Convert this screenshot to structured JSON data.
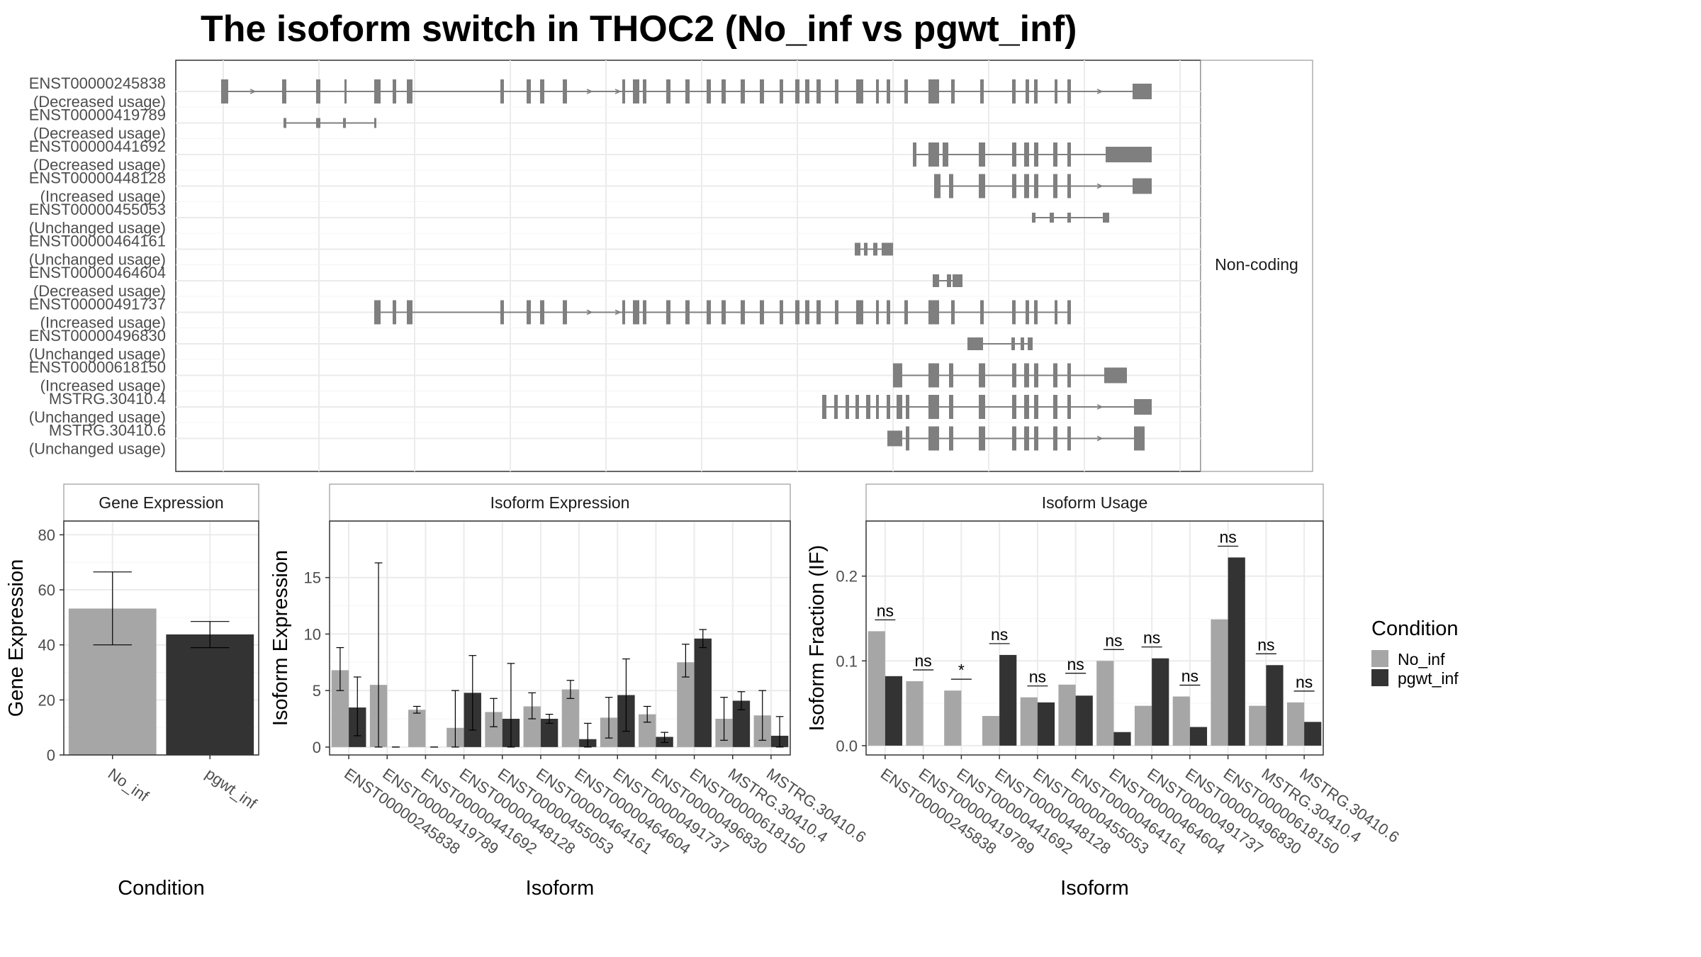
{
  "figure": {
    "title": "The isoform switch in THOC2 (No_inf vs pgwt_inf)",
    "structure_strip_label": "Non-coding",
    "legend": {
      "title": "Condition",
      "items": [
        {
          "label": "No_inf",
          "color": "#a6a6a6"
        },
        {
          "label": "pgwt_inf",
          "color": "#333333"
        }
      ]
    }
  },
  "chart_data": [
    {
      "type": "gene-structure",
      "facet_label": "Non-coding",
      "transcripts": [
        {
          "id": "ENST00000245838",
          "change": "(Decreased usage)"
        },
        {
          "id": "ENST00000419789",
          "change": "(Decreased usage)"
        },
        {
          "id": "ENST00000441692",
          "change": "(Decreased usage)"
        },
        {
          "id": "ENST00000448128",
          "change": "(Increased usage)"
        },
        {
          "id": "ENST00000455053",
          "change": "(Unchanged usage)"
        },
        {
          "id": "ENST00000464161",
          "change": "(Unchanged usage)"
        },
        {
          "id": "ENST00000464604",
          "change": "(Decreased usage)"
        },
        {
          "id": "ENST00000491737",
          "change": "(Increased usage)"
        },
        {
          "id": "ENST00000496830",
          "change": "(Unchanged usage)"
        },
        {
          "id": "ENST00000618150",
          "change": "(Increased usage)"
        },
        {
          "id": "MSTRG.30410.4",
          "change": "(Unchanged usage)"
        },
        {
          "id": "MSTRG.30410.6",
          "change": "(Unchanged usage)"
        }
      ]
    },
    {
      "type": "bar",
      "title": "Gene Expression",
      "xlabel": "Condition",
      "ylabel": "Gene Expression",
      "ylim": [
        0,
        85
      ],
      "yticks": [
        0,
        20,
        40,
        60,
        80
      ],
      "categories": [
        "No_inf",
        "pgwt_inf"
      ],
      "values": [
        53.2,
        43.8
      ],
      "error": [
        [
          40.0,
          66.5
        ],
        [
          39.0,
          48.5
        ]
      ],
      "colors": [
        "#a6a6a6",
        "#333333"
      ]
    },
    {
      "type": "bar",
      "title": "Isoform Expression",
      "xlabel": "Isoform",
      "ylabel": "Isoform Expression",
      "ylim": [
        -0.7,
        20.0
      ],
      "yticks": [
        0,
        5,
        10,
        15
      ],
      "categories": [
        "ENST00000245838",
        "ENST00000419789",
        "ENST00000441692",
        "ENST00000448128",
        "ENST00000455053",
        "ENST00000464161",
        "ENST00000464604",
        "ENST00000491737",
        "ENST00000496830",
        "ENST00000618150",
        "MSTRG.30410.4",
        "MSTRG.30410.6"
      ],
      "series": [
        {
          "name": "No_inf",
          "values": [
            6.8,
            5.5,
            3.3,
            1.7,
            3.1,
            3.6,
            5.1,
            2.6,
            2.9,
            7.5,
            2.5,
            2.8
          ],
          "error": [
            [
              5.0,
              8.8
            ],
            [
              0.0,
              16.3
            ],
            [
              3.0,
              3.6
            ],
            [
              0.0,
              5.0
            ],
            [
              1.8,
              4.3
            ],
            [
              2.5,
              4.8
            ],
            [
              4.3,
              5.9
            ],
            [
              0.8,
              4.4
            ],
            [
              2.2,
              3.6
            ],
            [
              6.2,
              9.1
            ],
            [
              0.6,
              4.4
            ],
            [
              0.6,
              5.0
            ]
          ]
        },
        {
          "name": "pgwt_inf",
          "values": [
            3.5,
            0.0,
            0.0,
            4.8,
            2.5,
            2.5,
            0.7,
            4.6,
            0.9,
            9.6,
            4.1,
            1.0
          ],
          "error": [
            [
              1.0,
              6.2
            ],
            [
              0.0,
              0.0
            ],
            [
              0.0,
              0.0
            ],
            [
              1.5,
              8.1
            ],
            [
              0.0,
              7.4
            ],
            [
              2.1,
              2.9
            ],
            [
              0.0,
              2.1
            ],
            [
              1.4,
              7.8
            ],
            [
              0.4,
              1.3
            ],
            [
              8.8,
              10.4
            ],
            [
              3.3,
              4.9
            ],
            [
              0.0,
              2.7
            ]
          ]
        }
      ]
    },
    {
      "type": "bar",
      "title": "Isoform Usage",
      "xlabel": "Isoform",
      "ylabel": "Isoform Fraction (IF)",
      "ylim": [
        -0.011,
        0.265
      ],
      "yticks": [
        0.0,
        0.1,
        0.2
      ],
      "ytick_labels": [
        "0.0",
        "0.1",
        "0.2"
      ],
      "categories": [
        "ENST00000245838",
        "ENST00000419789",
        "ENST00000441692",
        "ENST00000448128",
        "ENST00000455053",
        "ENST00000464161",
        "ENST00000464604",
        "ENST00000491737",
        "ENST00000496830",
        "ENST00000618150",
        "MSTRG.30410.4",
        "MSTRG.30410.6"
      ],
      "series": [
        {
          "name": "No_inf",
          "values": [
            0.135,
            0.076,
            0.065,
            0.035,
            0.057,
            0.072,
            0.1,
            0.047,
            0.058,
            0.149,
            0.047,
            0.051
          ]
        },
        {
          "name": "pgwt_inf",
          "values": [
            0.082,
            0.0,
            0.0,
            0.107,
            0.051,
            0.059,
            0.016,
            0.103,
            0.022,
            0.222,
            0.095,
            0.028
          ]
        }
      ],
      "significance": [
        "ns",
        "ns",
        "*",
        "ns",
        "ns",
        "ns",
        "ns",
        "ns",
        "ns",
        "ns",
        "ns",
        "ns"
      ]
    }
  ]
}
